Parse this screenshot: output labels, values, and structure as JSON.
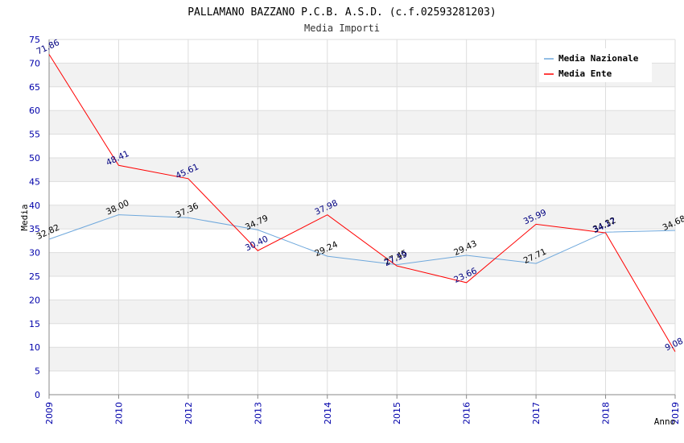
{
  "chart_data": {
    "type": "line",
    "title": "PALLAMANO BAZZANO P.C.B. A.S.D. (c.f.02593281203)",
    "subtitle": "Media Importi",
    "xlabel": "Anno",
    "ylabel": "Media",
    "ylim": [
      0,
      75
    ],
    "yticks": [
      0,
      5,
      10,
      15,
      20,
      25,
      30,
      35,
      40,
      45,
      50,
      55,
      60,
      65,
      70,
      75
    ],
    "categories": [
      "2009",
      "2010",
      "2012",
      "2013",
      "2014",
      "2015",
      "2016",
      "2017",
      "2018",
      "2019"
    ],
    "legend_position": "top-right",
    "series": [
      {
        "name": "Media Nazionale",
        "color": "#6fa8dc",
        "label_color": "#000000",
        "values": [
          32.82,
          38.0,
          37.36,
          34.79,
          29.24,
          27.45,
          29.43,
          27.71,
          34.32,
          34.68
        ],
        "labels": [
          "32.82",
          "38.00",
          "37.36",
          "34.79",
          "29.24",
          "27.45",
          "29.43",
          "27.71",
          "34.32",
          "34.68"
        ]
      },
      {
        "name": "Media Ente",
        "color": "#ff0000",
        "label_color": "#000080",
        "values": [
          71.86,
          48.41,
          45.61,
          30.4,
          37.98,
          27.19,
          23.66,
          35.99,
          34.17,
          9.08
        ],
        "labels": [
          "71.86",
          "48.41",
          "45.61",
          "30.40",
          "37.98",
          "27.19",
          "23.66",
          "35.99",
          "34.17",
          "9.08"
        ]
      }
    ]
  }
}
